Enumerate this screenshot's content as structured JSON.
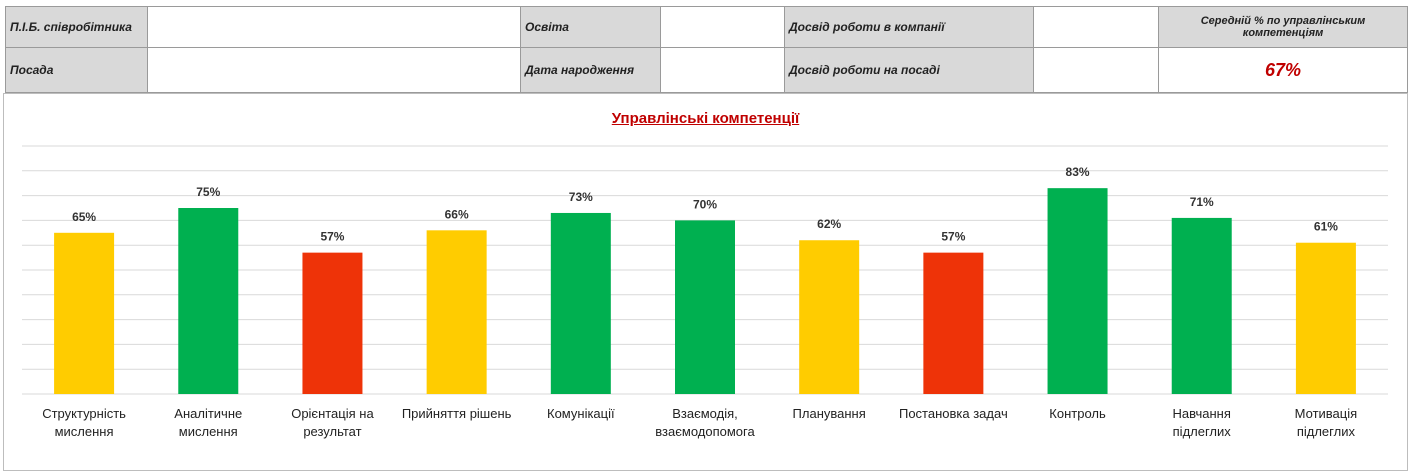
{
  "header": {
    "rows": [
      [
        "П.І.Б. співробітника",
        "Освіта",
        "Досвід роботи в компанії",
        "Середній % по управлінським компетенціям"
      ],
      [
        "Посада",
        "Дата народження",
        "Досвід роботи на посаді",
        "67%"
      ]
    ]
  },
  "chart_data": {
    "type": "bar",
    "title": "Управлінські компетенції",
    "categories": [
      "Структурність мислення",
      "Аналітичне мислення",
      "Орієнтація на результат",
      "Прийняття рішень",
      "Комунікації",
      "Взаємодія, взаємодопомога",
      "Планування",
      "Постановка задач",
      "Контроль",
      "Навчання підлеглих",
      "Мотивація підлеглих"
    ],
    "values": [
      65,
      75,
      57,
      66,
      73,
      70,
      62,
      57,
      83,
      71,
      61
    ],
    "value_labels": [
      "65%",
      "75%",
      "57%",
      "66%",
      "73%",
      "70%",
      "62%",
      "57%",
      "83%",
      "71%",
      "61%"
    ],
    "colors": [
      "#ffcc00",
      "#00b050",
      "#ee3308",
      "#ffcc00",
      "#00b050",
      "#00b050",
      "#ffcc00",
      "#ee3308",
      "#00b050",
      "#00b050",
      "#ffcc00"
    ],
    "ylim": [
      0,
      100
    ],
    "yticks": [
      0,
      10,
      20,
      30,
      40,
      50,
      60,
      70,
      80,
      90,
      100
    ],
    "grid": true
  }
}
